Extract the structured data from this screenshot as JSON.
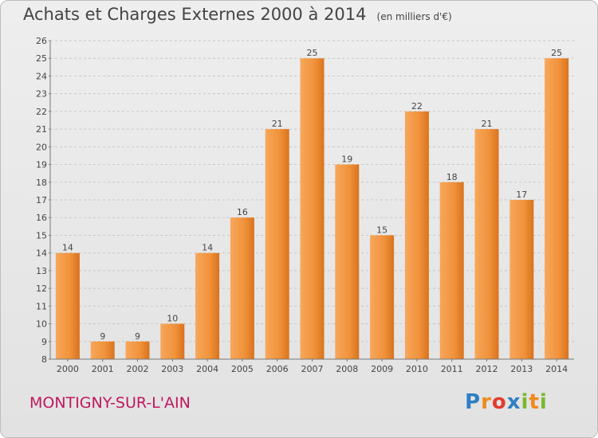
{
  "header": {
    "title": "Achats et Charges Externes 2000 à 2014",
    "unit": "(en milliers d'€)"
  },
  "footer": {
    "commune": "MONTIGNY-SUR-L'AIN",
    "logo_text": "Proxiti",
    "logo_colors": [
      "#2f7fc3",
      "#f08a1c",
      "#e33b2f",
      "#2f7fc3",
      "#7ab82e",
      "#f08a1c",
      "#7ab82e"
    ]
  },
  "chart_data": {
    "type": "bar",
    "categories": [
      "2000",
      "2001",
      "2002",
      "2003",
      "2004",
      "2005",
      "2006",
      "2007",
      "2008",
      "2009",
      "2010",
      "2011",
      "2012",
      "2013",
      "2014"
    ],
    "values": [
      14,
      9,
      9,
      10,
      14,
      16,
      21,
      25,
      19,
      15,
      22,
      18,
      21,
      17,
      25
    ],
    "ylim": [
      8,
      26
    ],
    "yticks": [
      8,
      9,
      10,
      11,
      12,
      13,
      14,
      15,
      16,
      17,
      18,
      19,
      20,
      21,
      22,
      23,
      24,
      25,
      26
    ],
    "grid": "horizontal dashed",
    "bar_color": "#f0923a",
    "bar_color_light": "#f7a75c",
    "bar_color_dark": "#d9731f"
  }
}
